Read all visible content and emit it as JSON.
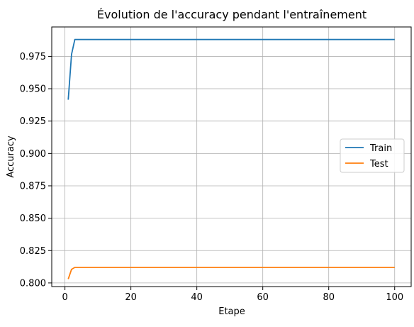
{
  "chart_data": {
    "type": "line",
    "title": "Évolution de l'accuracy pendant l'entraînement",
    "xlabel": "Etape",
    "ylabel": "Accuracy",
    "xlim": [
      -4,
      105
    ],
    "ylim": [
      0.7972,
      0.9977
    ],
    "xticks": [
      0,
      20,
      40,
      60,
      80,
      100
    ],
    "yticks": [
      0.8,
      0.825,
      0.85,
      0.875,
      0.9,
      0.925,
      0.95,
      0.975
    ],
    "ytick_labels": [
      "0.800",
      "0.825",
      "0.850",
      "0.875",
      "0.900",
      "0.925",
      "0.950",
      "0.975"
    ],
    "grid": true,
    "legend_position": "center-right",
    "series": [
      {
        "name": "Train",
        "color": "#1f77b4",
        "x": [
          1,
          2,
          3,
          4,
          100
        ],
        "y": [
          0.9415,
          0.9765,
          0.988,
          0.988,
          0.988
        ]
      },
      {
        "name": "Test",
        "color": "#ff7f0e",
        "x": [
          1,
          2,
          3,
          4,
          100
        ],
        "y": [
          0.803,
          0.8105,
          0.812,
          0.812,
          0.812
        ]
      }
    ]
  }
}
